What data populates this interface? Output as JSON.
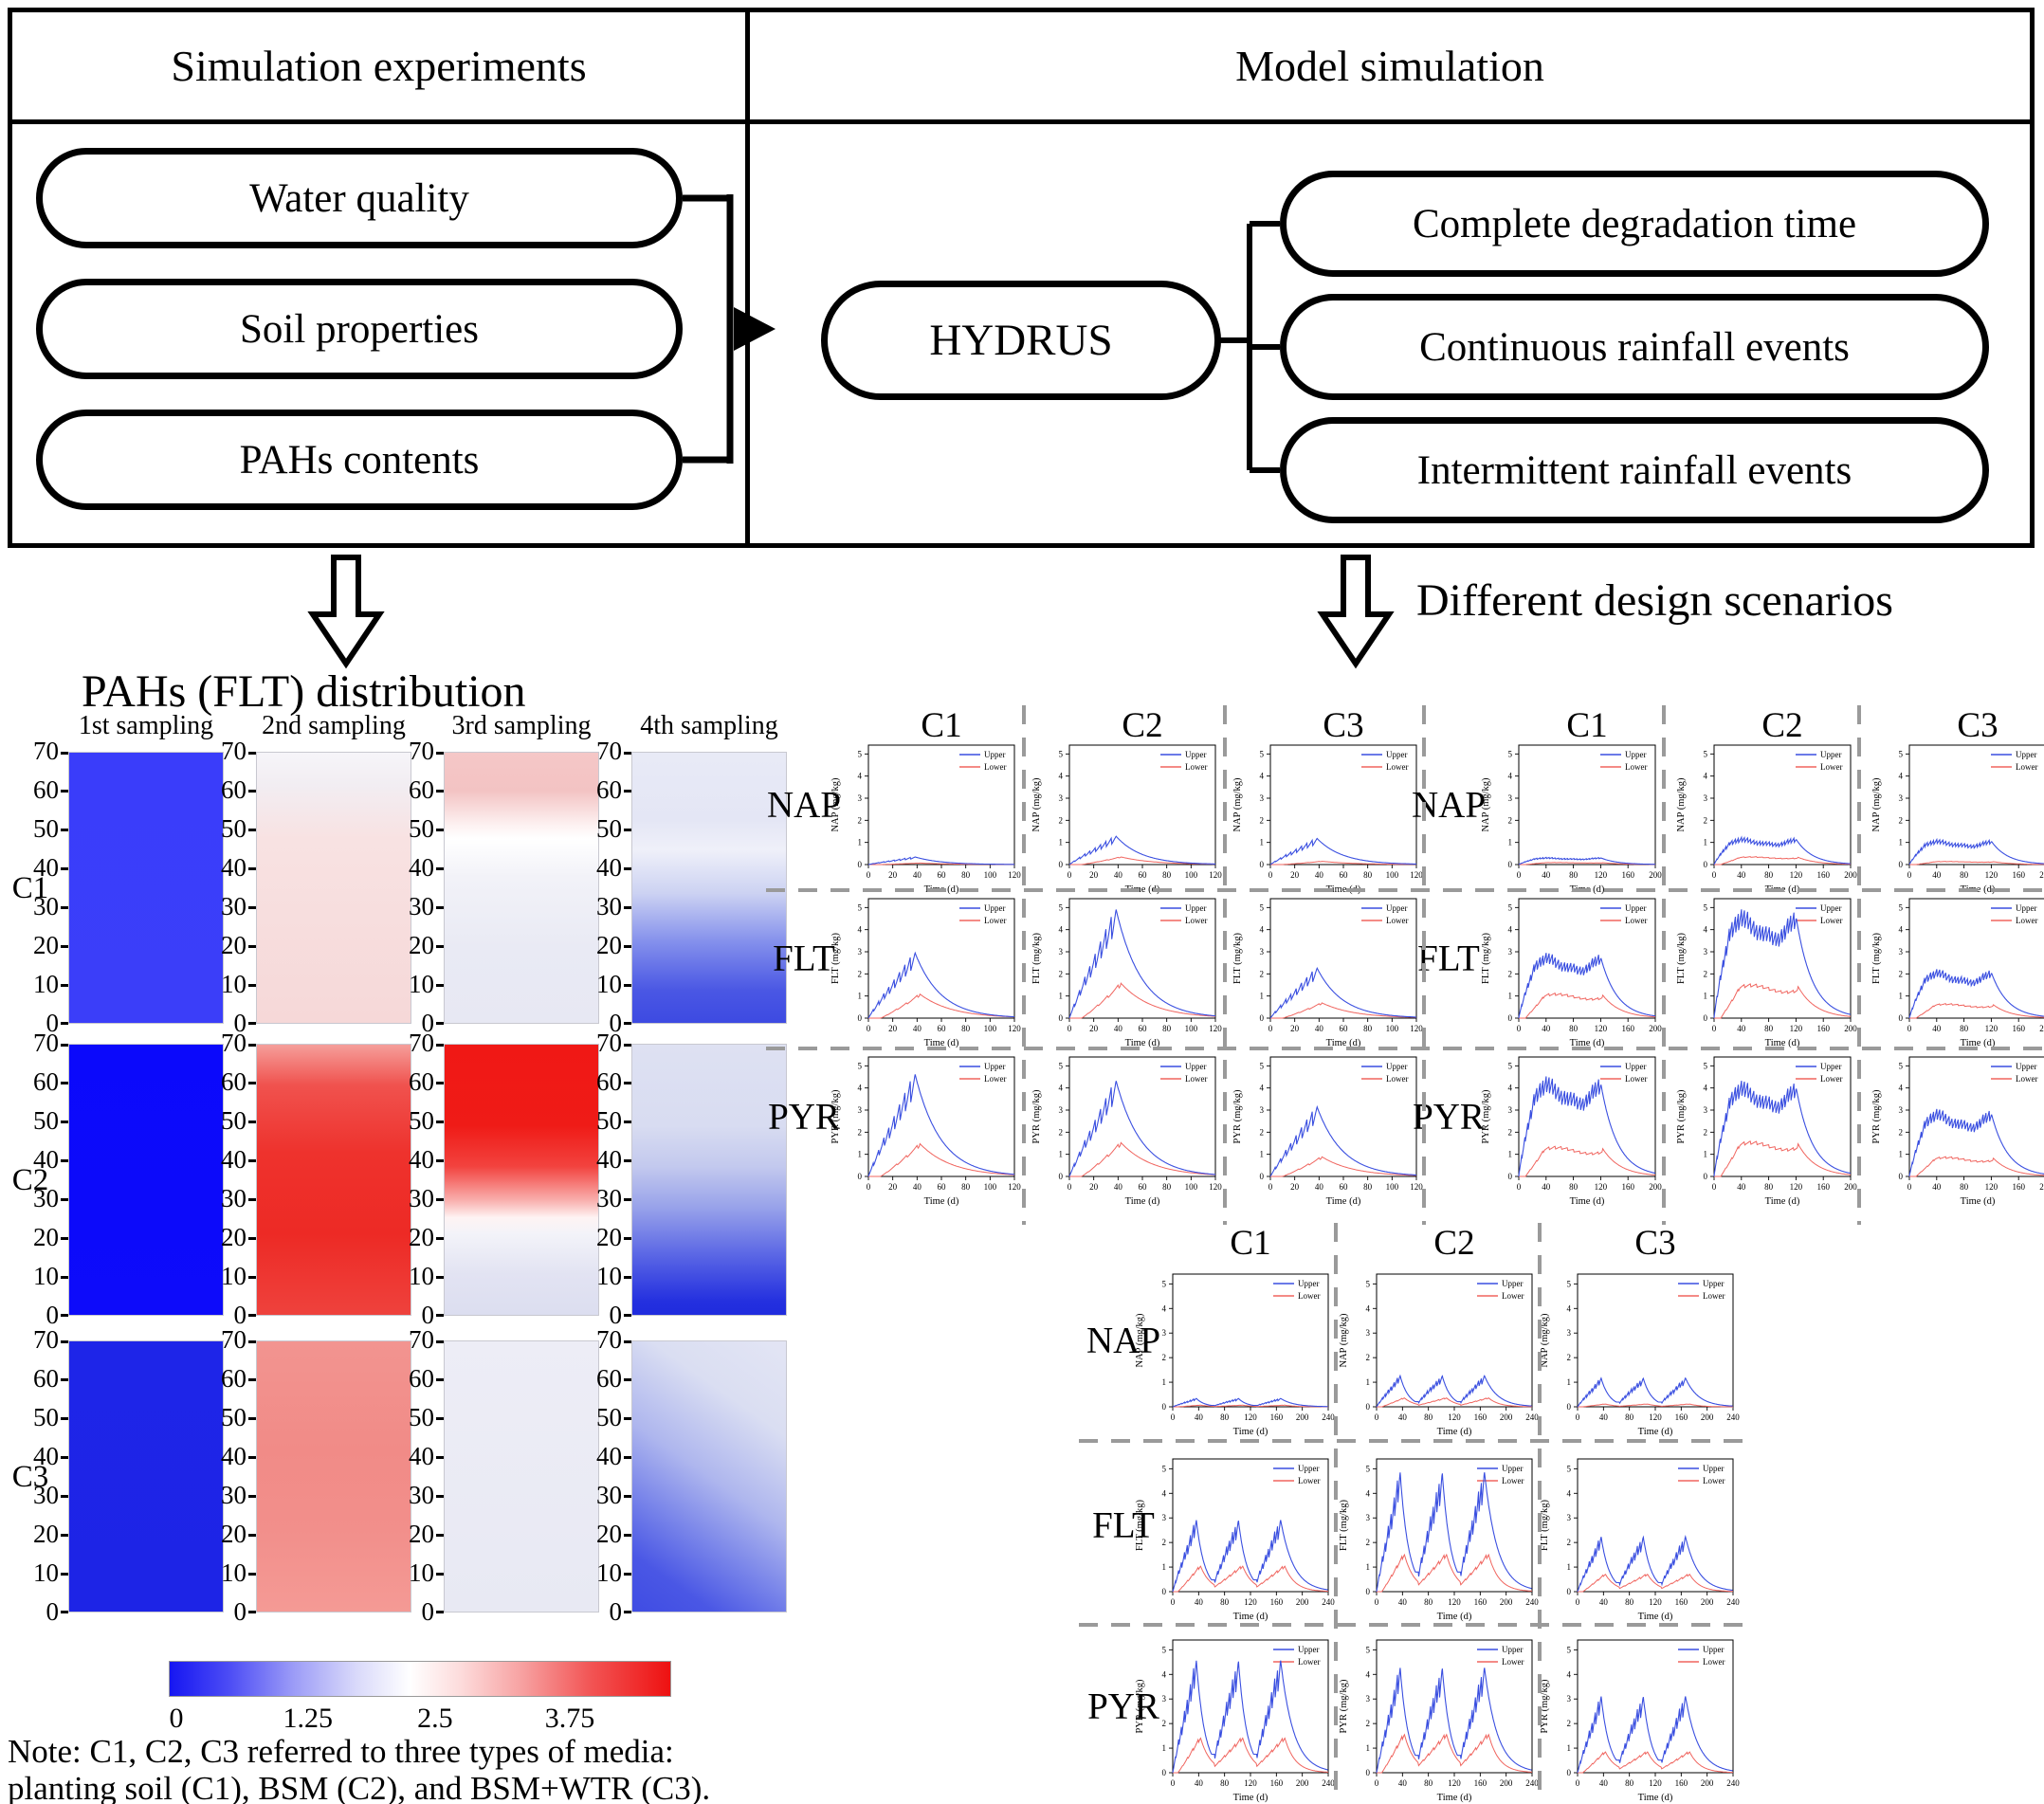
{
  "flowchart": {
    "left_header": "Simulation experiments",
    "right_header": "Model simulation",
    "inputs": [
      "Water quality",
      "Soil properties",
      "PAHs contents"
    ],
    "model": "HYDRUS",
    "outputs": [
      "Complete degradation time",
      "Continuous rainfall events",
      "Intermittent rainfall events"
    ],
    "right_arrow_label": "Different design scenarios"
  },
  "heatmap_section": {
    "title": "PAHs (FLT) distribution",
    "col_headers": [
      "1st sampling",
      "2nd sampling",
      "3rd sampling",
      "4th sampling"
    ],
    "row_labels": [
      "C1",
      "C2",
      "C3"
    ],
    "y_ticks": [
      0,
      10,
      20,
      30,
      40,
      50,
      60,
      70
    ],
    "cells": [
      {
        "row": "C1",
        "col": "1st sampling",
        "bg": "linear-gradient(180deg,#3a3dfa 0%,#3b3ef9 100%)"
      },
      {
        "row": "C1",
        "col": "2nd sampling",
        "bg": "linear-gradient(180deg,#f6f5f9 0%,#f2edf2 12%,#f8e2e2 32%,#f7dede 60%,#f6d8d8 100%)"
      },
      {
        "row": "C1",
        "col": "3rd sampling",
        "bg": "linear-gradient(180deg,#f5c7c7 0%,#f3c3c3 14%,#fdf2f2 27%,#ffffff 32%,#f2f2f8 46%,#e9eaf4 72%,#e7e8f3 100%)"
      },
      {
        "row": "C1",
        "col": "4th sampling",
        "bg": "linear-gradient(180deg,#e8eaf6 0%,#e4e6f5 25%,#eff0f9 36%,#ccd2f2 52%,#8490ec 70%,#4a57e4 88%,#3d4ae2 100%)"
      },
      {
        "row": "C2",
        "col": "1st sampling",
        "bg": "linear-gradient(180deg,#0b09fb 0%,#0d0bfa 100%)"
      },
      {
        "row": "C2",
        "col": "2nd sampling",
        "bg": "linear-gradient(180deg,#f59e9a 0%,#f0524e 15%,#ee322d 40%,#ed2a25 70%,#ee423d 100%)"
      },
      {
        "row": "C2",
        "col": "3rd sampling",
        "bg": "linear-gradient(180deg,#f01815 0%,#ef1b17 30%,#f2423e 45%,#f9b3b1 58%,#fef3f3 64%,#f3f3f9 70%,#e2e3f2 85%,#dcdef0 100%)"
      },
      {
        "row": "C2",
        "col": "4th sampling",
        "bg": "linear-gradient(180deg,#dee1f2 0%,#d8dcf1 30%,#c3c9ee 45%,#99a3ea 60%,#5a66e5 78%,#2430df 95%,#1f2bde 100%)"
      },
      {
        "row": "C3",
        "col": "1st sampling",
        "bg": "linear-gradient(180deg,#1e25e8 0%,#1d24e6 100%)"
      },
      {
        "row": "C3",
        "col": "2nd sampling",
        "bg": "linear-gradient(180deg,#f29490 0%,#f18b87 40%,#f28f8b 70%,#f49a95 100%)"
      },
      {
        "row": "C3",
        "col": "3rd sampling",
        "bg": "linear-gradient(180deg,#ededf6 0%,#e8e9f3 100%)"
      },
      {
        "row": "C3",
        "col": "4th sampling",
        "bg": "linear-gradient(215deg,#e3e5f4 0%,#dadef2 25%,#aeb6ee 50%,#7480e9 70%,#4a57e5 85%,#3f4ce3 100%)"
      }
    ],
    "colorbar": {
      "gradient": "linear-gradient(90deg,#1616f2 0%,#4d4df5 12%,#9d9df7 25%,#d8d8fa 37%,#ffffff 48%,#fddcdc 58%,#f7a3a3 70%,#f25555 84%,#ee1111 100%)",
      "ticks": [
        {
          "label": "0",
          "pos": 0.015
        },
        {
          "label": "1.25",
          "pos": 0.277
        },
        {
          "label": "2.5",
          "pos": 0.53
        },
        {
          "label": "3.75",
          "pos": 0.798
        }
      ]
    },
    "note": [
      "Note: C1, C2, C3 referred to three types of media:",
      "planting soil (C1), BSM (C2), and BSM+WTR (C3)."
    ]
  },
  "chart_data": {
    "type": "line",
    "x_label": "Time (d)",
    "y_unit": "(mg/kg)",
    "y_ticks": [
      0,
      1,
      2,
      3,
      4,
      5
    ],
    "ylim": [
      0,
      5.4
    ],
    "legend": [
      "Upper",
      "Lower"
    ],
    "series_colors": {
      "upper": "#3a4fe0",
      "lower": "#f0655f"
    },
    "rows": [
      "NAP",
      "FLT",
      "PYR"
    ],
    "columns": [
      "C1",
      "C2",
      "C3"
    ],
    "blocks": [
      {
        "name": "block-a",
        "pattern": "single",
        "xmax": 120,
        "x_ticks": [
          0,
          20,
          40,
          60,
          80,
          100,
          120
        ],
        "cells": [
          {
            "row": "NAP",
            "col": "C1",
            "upper_peak": 0.35,
            "lower_peak": 0.07
          },
          {
            "row": "NAP",
            "col": "C2",
            "upper_peak": 1.3,
            "lower_peak": 0.35
          },
          {
            "row": "NAP",
            "col": "C3",
            "upper_peak": 1.2,
            "lower_peak": 0.15
          },
          {
            "row": "FLT",
            "col": "C1",
            "upper_peak": 3.0,
            "lower_peak": 1.1
          },
          {
            "row": "FLT",
            "col": "C2",
            "upper_peak": 5.0,
            "lower_peak": 1.6
          },
          {
            "row": "FLT",
            "col": "C3",
            "upper_peak": 2.3,
            "lower_peak": 0.7
          },
          {
            "row": "PYR",
            "col": "C1",
            "upper_peak": 4.7,
            "lower_peak": 1.5
          },
          {
            "row": "PYR",
            "col": "C2",
            "upper_peak": 4.4,
            "lower_peak": 1.55
          },
          {
            "row": "PYR",
            "col": "C3",
            "upper_peak": 3.2,
            "lower_peak": 0.9
          }
        ]
      },
      {
        "name": "block-b",
        "pattern": "plateau",
        "xmax": 200,
        "x_ticks": [
          0,
          40,
          80,
          120,
          160,
          200
        ],
        "cells": [
          {
            "row": "NAP",
            "col": "C1",
            "upper_peak": 0.33,
            "lower_peak": 0.1
          },
          {
            "row": "NAP",
            "col": "C2",
            "upper_peak": 1.25,
            "lower_peak": 0.38
          },
          {
            "row": "NAP",
            "col": "C3",
            "upper_peak": 1.15,
            "lower_peak": 0.15
          },
          {
            "row": "FLT",
            "col": "C1",
            "upper_peak": 3.0,
            "lower_peak": 1.2
          },
          {
            "row": "FLT",
            "col": "C2",
            "upper_peak": 5.0,
            "lower_peak": 1.65
          },
          {
            "row": "FLT",
            "col": "C3",
            "upper_peak": 2.25,
            "lower_peak": 0.7
          },
          {
            "row": "PYR",
            "col": "C1",
            "upper_peak": 4.6,
            "lower_peak": 1.45
          },
          {
            "row": "PYR",
            "col": "C2",
            "upper_peak": 4.4,
            "lower_peak": 1.7
          },
          {
            "row": "PYR",
            "col": "C3",
            "upper_peak": 3.1,
            "lower_peak": 0.95
          }
        ]
      },
      {
        "name": "block-c",
        "pattern": "triple",
        "xmax": 240,
        "x_ticks": [
          0,
          40,
          80,
          120,
          160,
          200,
          240
        ],
        "cells": [
          {
            "row": "NAP",
            "col": "C1",
            "upper_peak": 0.35,
            "lower_peak": 0.07
          },
          {
            "row": "NAP",
            "col": "C2",
            "upper_peak": 1.3,
            "lower_peak": 0.38
          },
          {
            "row": "NAP",
            "col": "C3",
            "upper_peak": 1.2,
            "lower_peak": 0.12
          },
          {
            "row": "FLT",
            "col": "C1",
            "upper_peak": 3.0,
            "lower_peak": 1.1
          },
          {
            "row": "FLT",
            "col": "C2",
            "upper_peak": 5.0,
            "lower_peak": 1.6
          },
          {
            "row": "FLT",
            "col": "C3",
            "upper_peak": 2.3,
            "lower_peak": 0.75
          },
          {
            "row": "PYR",
            "col": "C1",
            "upper_peak": 4.7,
            "lower_peak": 1.5
          },
          {
            "row": "PYR",
            "col": "C2",
            "upper_peak": 4.4,
            "lower_peak": 1.65
          },
          {
            "row": "PYR",
            "col": "C3",
            "upper_peak": 3.2,
            "lower_peak": 0.9
          }
        ]
      }
    ]
  }
}
